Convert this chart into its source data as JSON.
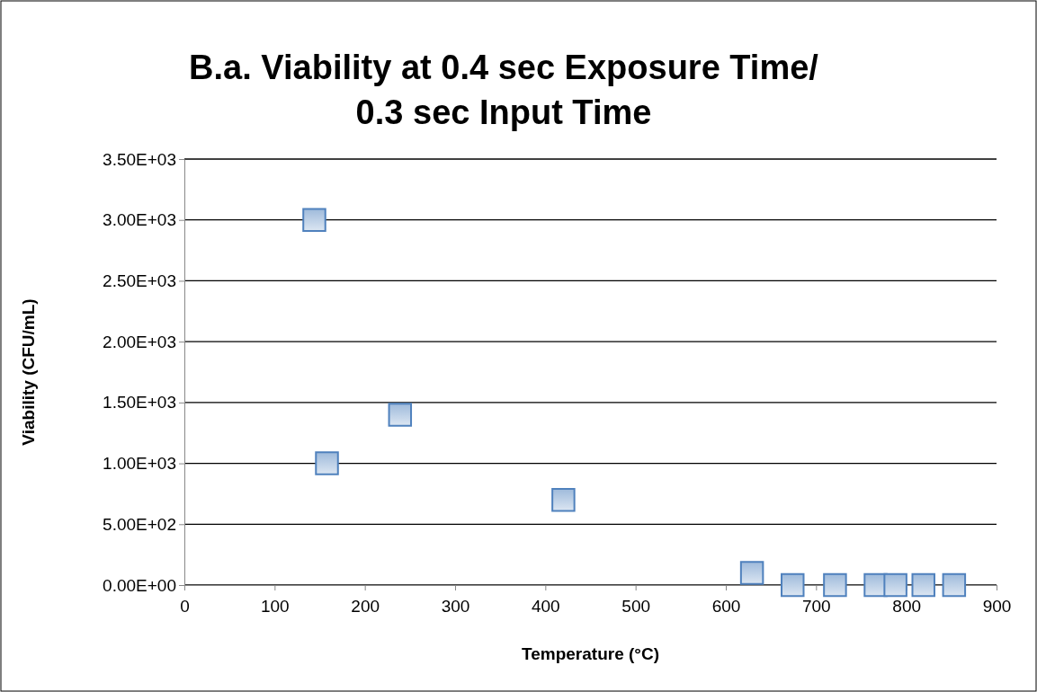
{
  "chart_data": {
    "type": "scatter",
    "title": "B.a. Viability at 0.4 sec Exposure Time/ 0.3 sec Input Time",
    "xlabel": "Temperature (°C)",
    "ylabel": "Viability (CFU/mL)",
    "x": [
      144,
      158,
      239,
      420,
      629,
      674,
      721,
      766,
      788,
      819,
      853
    ],
    "series": [
      {
        "color": "#4f81bd",
        "values": [
          3000,
          1000,
          1400,
          700,
          100,
          0,
          0,
          0,
          0,
          0,
          0
        ]
      }
    ],
    "xlim": [
      0,
      900
    ],
    "xticks": [
      0,
      100,
      200,
      300,
      400,
      500,
      600,
      700,
      800,
      900
    ],
    "ylim": [
      0,
      3500
    ],
    "yticks": [
      {
        "value": 0,
        "label": "0.00E+00"
      },
      {
        "value": 500,
        "label": "5.00E+02"
      },
      {
        "value": 1000,
        "label": "1.00E+03"
      },
      {
        "value": 1500,
        "label": "1.50E+03"
      },
      {
        "value": 2000,
        "label": "2.00E+03"
      },
      {
        "value": 2500,
        "label": "2.50E+03"
      },
      {
        "value": 3000,
        "label": "3.00E+03"
      },
      {
        "value": 3500,
        "label": "3.50E+03"
      }
    ],
    "grid": "y",
    "marker": "square"
  }
}
